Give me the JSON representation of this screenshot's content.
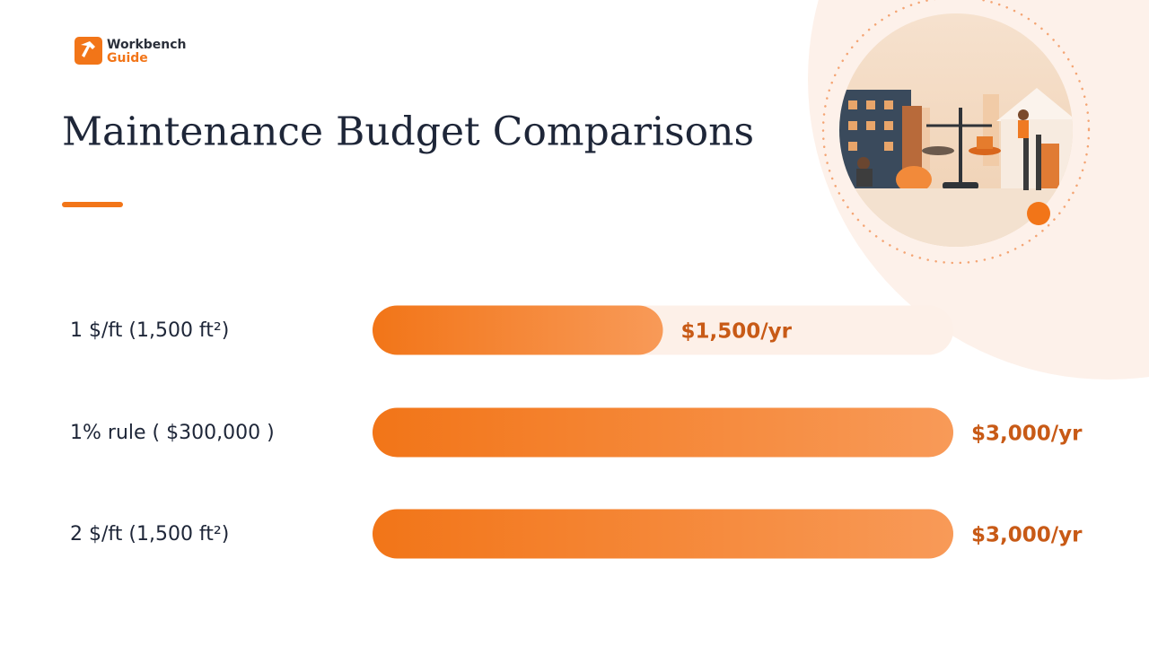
{
  "brand": {
    "line1": "Workbench",
    "line2": "Guide"
  },
  "chart_data": {
    "type": "hbar",
    "title": "Maintenance Budget Comparisons",
    "categories": [
      "1 $/ft (1,500 ft²)",
      "1% rule ( $300,000 )",
      "2 $/ft (1,500 ft²)"
    ],
    "values": [
      1500,
      3000,
      3000
    ],
    "value_labels": [
      "$1,500/yr",
      "$3,000/yr",
      "$3,000/yr"
    ],
    "xlim": [
      0,
      3000
    ],
    "color": "#f27a20"
  }
}
